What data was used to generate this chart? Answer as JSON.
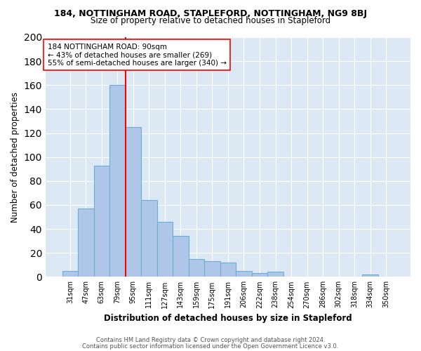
{
  "title": "184, NOTTINGHAM ROAD, STAPLEFORD, NOTTINGHAM, NG9 8BJ",
  "subtitle": "Size of property relative to detached houses in Stapleford",
  "xlabel": "Distribution of detached houses by size in Stapleford",
  "ylabel": "Number of detached properties",
  "bar_labels": [
    "31sqm",
    "47sqm",
    "63sqm",
    "79sqm",
    "95sqm",
    "111sqm",
    "127sqm",
    "143sqm",
    "159sqm",
    "175sqm",
    "191sqm",
    "206sqm",
    "222sqm",
    "238sqm",
    "254sqm",
    "270sqm",
    "286sqm",
    "302sqm",
    "318sqm",
    "334sqm",
    "350sqm"
  ],
  "bar_values": [
    5,
    57,
    93,
    160,
    125,
    64,
    46,
    34,
    15,
    13,
    12,
    5,
    3,
    4,
    0,
    0,
    0,
    0,
    0,
    2,
    0
  ],
  "bar_color": "#aec6e8",
  "bar_edge_color": "#6baed6",
  "bar_width": 1.0,
  "red_line_index": 4,
  "red_line_color": "red",
  "annotation_text": "184 NOTTINGHAM ROAD: 90sqm\n← 43% of detached houses are smaller (269)\n55% of semi-detached houses are larger (340) →",
  "annotation_box_color": "white",
  "annotation_box_edge": "red",
  "ylim": [
    0,
    200
  ],
  "yticks": [
    0,
    20,
    40,
    60,
    80,
    100,
    120,
    140,
    160,
    180,
    200
  ],
  "bg_color": "#dce9f5",
  "footer1": "Contains HM Land Registry data © Crown copyright and database right 2024.",
  "footer2": "Contains public sector information licensed under the Open Government Licence v3.0."
}
